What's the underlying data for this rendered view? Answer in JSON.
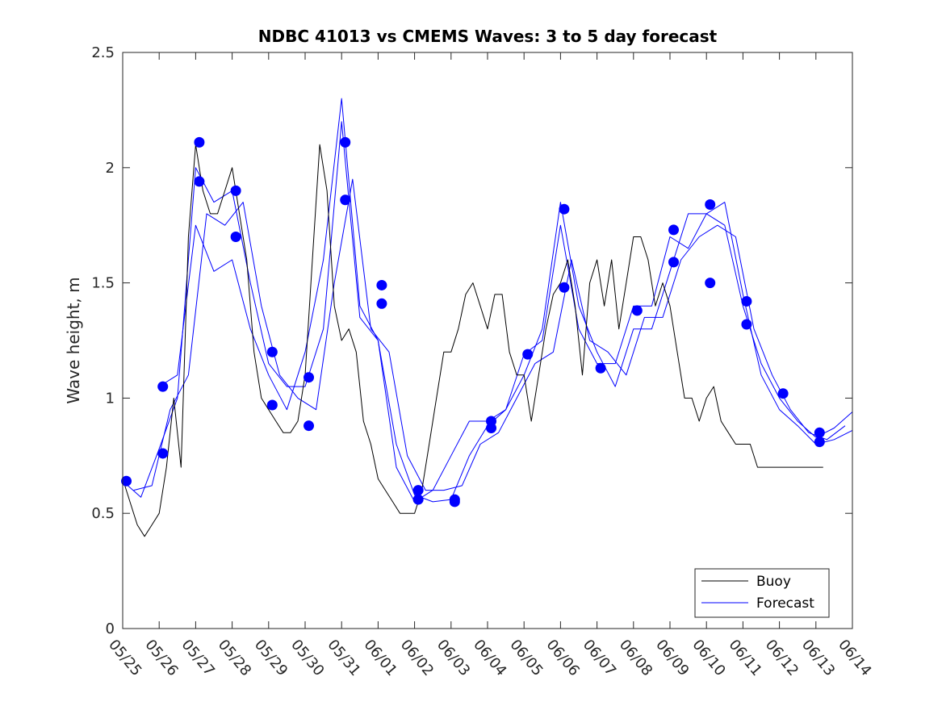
{
  "chart_data": {
    "type": "line",
    "title": "NDBC 41013 vs CMEMS Waves: 3 to 5 day forecast",
    "xlabel": "",
    "ylabel": "Wave height, m",
    "xlim": [
      0,
      20
    ],
    "ylim": [
      0,
      2.5
    ],
    "x_ticks": [
      0,
      1,
      2,
      3,
      4,
      5,
      6,
      7,
      8,
      9,
      10,
      11,
      12,
      13,
      14,
      15,
      16,
      17,
      18,
      19,
      20
    ],
    "x_tick_labels": [
      "05/25",
      "05/26",
      "05/27",
      "05/28",
      "05/29",
      "05/30",
      "05/31",
      "06/01",
      "06/02",
      "06/03",
      "06/04",
      "06/05",
      "06/06",
      "06/07",
      "06/08",
      "06/09",
      "06/10",
      "06/11",
      "06/12",
      "06/13",
      "06/14"
    ],
    "y_ticks": [
      0,
      0.5,
      1,
      1.5,
      2,
      2.5
    ],
    "y_tick_labels": [
      "0",
      "0.5",
      "1",
      "1.5",
      "2",
      "2.5"
    ],
    "legend": {
      "position": "bottom-right",
      "entries": [
        {
          "label": "Buoy",
          "color": "#000000"
        },
        {
          "label": "Forecast",
          "color": "#0000ff"
        }
      ]
    },
    "series": [
      {
        "name": "Buoy",
        "color": "#000000",
        "x": [
          0,
          0.2,
          0.4,
          0.6,
          0.8,
          1.0,
          1.2,
          1.4,
          1.6,
          1.8,
          2.0,
          2.2,
          2.4,
          2.6,
          2.8,
          3.0,
          3.2,
          3.4,
          3.6,
          3.8,
          4.0,
          4.2,
          4.4,
          4.6,
          4.8,
          5.0,
          5.2,
          5.4,
          5.6,
          5.8,
          6.0,
          6.2,
          6.4,
          6.6,
          6.8,
          7.0,
          7.2,
          7.4,
          7.6,
          7.8,
          8.0,
          8.2,
          8.4,
          8.6,
          8.8,
          9.0,
          9.2,
          9.4,
          9.6,
          9.8,
          10.0,
          10.2,
          10.4,
          10.6,
          10.8,
          11.0,
          11.2,
          11.4,
          11.6,
          11.8,
          12.0,
          12.2,
          12.4,
          12.6,
          12.8,
          13.0,
          13.2,
          13.4,
          13.6,
          13.8,
          14.0,
          14.2,
          14.4,
          14.6,
          14.8,
          15.0,
          15.2,
          15.4,
          15.6,
          15.8,
          16.0,
          16.2,
          16.4,
          16.6,
          16.8,
          17.0,
          17.2,
          17.4,
          17.6,
          17.8,
          18.0,
          18.2,
          18.4,
          18.6,
          18.8,
          19.0,
          19.2
        ],
        "y": [
          0.65,
          0.55,
          0.45,
          0.4,
          0.45,
          0.5,
          0.7,
          1.0,
          0.7,
          1.7,
          2.1,
          1.9,
          1.8,
          1.8,
          1.9,
          2.0,
          1.8,
          1.6,
          1.2,
          1.0,
          0.95,
          0.9,
          0.85,
          0.85,
          0.9,
          1.1,
          1.6,
          2.1,
          1.9,
          1.4,
          1.25,
          1.3,
          1.2,
          0.9,
          0.8,
          0.65,
          0.6,
          0.55,
          0.5,
          0.5,
          0.5,
          0.6,
          0.8,
          1.0,
          1.2,
          1.2,
          1.3,
          1.45,
          1.5,
          1.4,
          1.3,
          1.45,
          1.45,
          1.2,
          1.1,
          1.1,
          0.9,
          1.1,
          1.3,
          1.45,
          1.5,
          1.6,
          1.4,
          1.1,
          1.5,
          1.6,
          1.4,
          1.6,
          1.3,
          1.5,
          1.7,
          1.7,
          1.6,
          1.4,
          1.5,
          1.4,
          1.2,
          1.0,
          1.0,
          0.9,
          1.0,
          1.05,
          0.9,
          0.85,
          0.8,
          0.8,
          0.8,
          0.7,
          0.7,
          0.7,
          0.7,
          0.7,
          0.7,
          0.7,
          0.7,
          0.7,
          0.7
        ]
      },
      {
        "name": "Forecast",
        "color": "#0000ff",
        "x": [
          0,
          0.5,
          1.0,
          1.5,
          2.0,
          2.5,
          3.0,
          3.5,
          4.0,
          4.5,
          5.0,
          5.5,
          6.0,
          6.5,
          7.0,
          7.5,
          8.0,
          8.5,
          9.0,
          9.5,
          10.0,
          10.5,
          11.0,
          11.5,
          12.0,
          12.5,
          13.0,
          13.5,
          14.0,
          14.5,
          15.0,
          15.5,
          16.0,
          16.5,
          17.0,
          17.5,
          18.0,
          18.5,
          19.0,
          19.5,
          20.0
        ],
        "y": [
          0.64,
          0.57,
          0.78,
          1.0,
          2.0,
          1.85,
          1.9,
          1.5,
          1.15,
          1.05,
          1.05,
          1.3,
          2.2,
          1.35,
          1.25,
          0.8,
          0.58,
          0.55,
          0.56,
          0.75,
          0.88,
          0.95,
          1.19,
          1.25,
          1.75,
          1.3,
          1.15,
          1.15,
          1.4,
          1.4,
          1.7,
          1.65,
          1.8,
          1.75,
          1.4,
          1.15,
          1.0,
          0.9,
          0.83,
          0.87,
          0.94
        ]
      },
      {
        "name": "",
        "color": "#0000ff",
        "x": [
          0.3,
          0.8,
          1.3,
          1.8,
          2.3,
          2.8,
          3.3,
          3.8,
          4.3,
          4.8,
          5.3,
          5.8,
          6.3,
          6.8,
          7.3,
          7.8,
          8.3,
          8.8,
          9.3,
          9.8,
          10.3,
          10.8,
          11.3,
          11.8,
          12.3,
          12.8,
          13.3,
          13.8,
          14.3,
          14.8,
          15.3,
          15.8,
          16.3,
          16.8,
          17.3,
          17.8,
          18.3,
          18.8,
          19.3,
          19.8
        ],
        "y": [
          0.6,
          0.62,
          0.95,
          1.1,
          1.8,
          1.75,
          1.85,
          1.4,
          1.1,
          1.0,
          0.95,
          1.5,
          1.95,
          1.3,
          1.2,
          0.75,
          0.6,
          0.6,
          0.62,
          0.8,
          0.85,
          1.0,
          1.15,
          1.2,
          1.6,
          1.25,
          1.2,
          1.1,
          1.35,
          1.35,
          1.6,
          1.7,
          1.75,
          1.7,
          1.3,
          1.1,
          0.95,
          0.85,
          0.82,
          0.88
        ]
      },
      {
        "name": "",
        "color": "#0000ff",
        "x": [
          1.0,
          1.5,
          2.0,
          2.5,
          3.0,
          3.5,
          4.0,
          4.5,
          5.0,
          5.5,
          6.0,
          6.5,
          7.0,
          7.5,
          8.0,
          8.5,
          9.0,
          9.5,
          10.0,
          10.5,
          11.0,
          11.5,
          12.0,
          12.5,
          13.0,
          13.5,
          14.0,
          14.5,
          15.0,
          15.5,
          16.0,
          16.5,
          17.0,
          17.5,
          18.0,
          18.5,
          19.0,
          19.5,
          20.0
        ],
        "y": [
          1.05,
          1.1,
          1.75,
          1.55,
          1.6,
          1.3,
          1.1,
          0.95,
          1.2,
          1.6,
          2.3,
          1.4,
          1.25,
          0.7,
          0.55,
          0.6,
          0.75,
          0.9,
          0.9,
          0.95,
          1.1,
          1.3,
          1.85,
          1.4,
          1.2,
          1.05,
          1.3,
          1.3,
          1.55,
          1.8,
          1.8,
          1.85,
          1.45,
          1.1,
          0.95,
          0.88,
          0.8,
          0.82,
          0.86
        ]
      }
    ],
    "markers": {
      "color": "#0000ff",
      "points": [
        {
          "x": 0.1,
          "y": 0.64
        },
        {
          "x": 1.1,
          "y": 1.05
        },
        {
          "x": 1.1,
          "y": 0.76
        },
        {
          "x": 2.1,
          "y": 2.11
        },
        {
          "x": 2.1,
          "y": 1.94
        },
        {
          "x": 3.1,
          "y": 1.9
        },
        {
          "x": 3.1,
          "y": 1.7
        },
        {
          "x": 4.1,
          "y": 1.2
        },
        {
          "x": 4.1,
          "y": 0.97
        },
        {
          "x": 5.1,
          "y": 1.09
        },
        {
          "x": 5.1,
          "y": 0.88
        },
        {
          "x": 6.1,
          "y": 2.11
        },
        {
          "x": 6.1,
          "y": 1.86
        },
        {
          "x": 7.1,
          "y": 1.49
        },
        {
          "x": 7.1,
          "y": 1.41
        },
        {
          "x": 8.1,
          "y": 0.6
        },
        {
          "x": 8.1,
          "y": 0.56
        },
        {
          "x": 9.1,
          "y": 0.56
        },
        {
          "x": 9.1,
          "y": 0.55
        },
        {
          "x": 10.1,
          "y": 0.9
        },
        {
          "x": 10.1,
          "y": 0.87
        },
        {
          "x": 11.1,
          "y": 1.19
        },
        {
          "x": 12.1,
          "y": 1.82
        },
        {
          "x": 12.1,
          "y": 1.48
        },
        {
          "x": 13.1,
          "y": 1.13
        },
        {
          "x": 14.1,
          "y": 1.38
        },
        {
          "x": 15.1,
          "y": 1.73
        },
        {
          "x": 15.1,
          "y": 1.59
        },
        {
          "x": 16.1,
          "y": 1.84
        },
        {
          "x": 16.1,
          "y": 1.5
        },
        {
          "x": 17.1,
          "y": 1.42
        },
        {
          "x": 17.1,
          "y": 1.32
        },
        {
          "x": 18.1,
          "y": 1.02
        },
        {
          "x": 19.1,
          "y": 0.85
        },
        {
          "x": 19.1,
          "y": 0.81
        }
      ]
    }
  }
}
